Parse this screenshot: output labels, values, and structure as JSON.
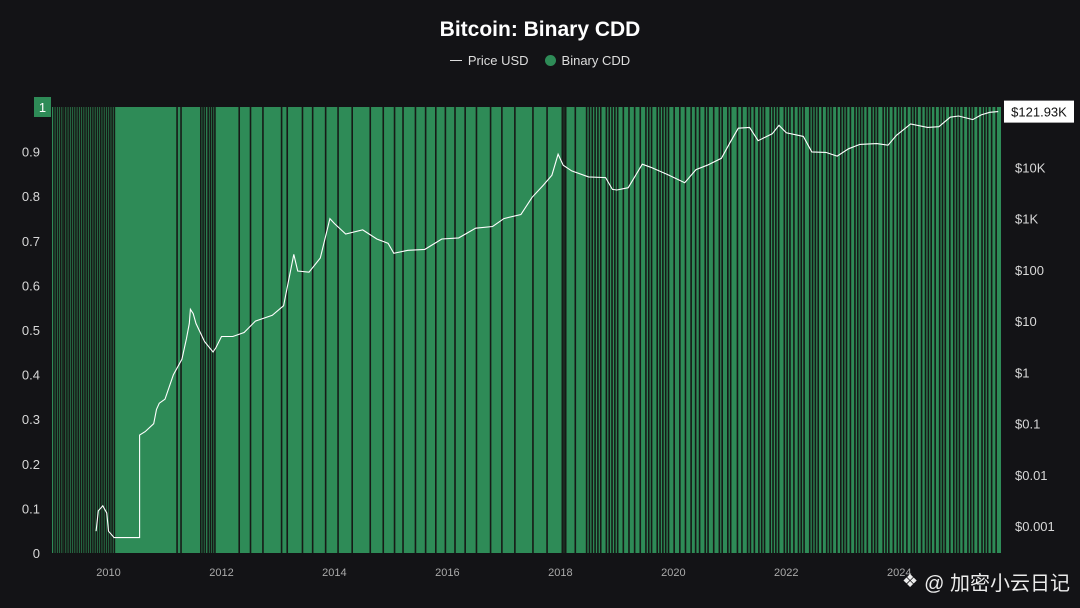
{
  "chart_data": {
    "type": "area",
    "title": "Bitcoin: Binary CDD",
    "legend_placement": "top-center",
    "grid": false,
    "colors": {
      "background": "#131316",
      "binary_cdd": "#2e8b57",
      "price": "#ffffff",
      "gap": "#161a17"
    },
    "left_axis": {
      "ylim": [
        0,
        1
      ],
      "ticks": [
        "0",
        "0.1",
        "0.2",
        "0.3",
        "0.4",
        "0.5",
        "0.6",
        "0.7",
        "0.8",
        "0.9",
        "1"
      ],
      "highlight_label": "1"
    },
    "right_axis": {
      "scale": "log",
      "ticks": [
        "$0.001",
        "$0.01",
        "$0.1",
        "$1",
        "$10",
        "$100",
        "$1K",
        "$10K"
      ],
      "ylim_usd": [
        0.0003,
        150000
      ],
      "last_value_label": "$121.93K"
    },
    "x_axis": {
      "ticks": [
        "2010",
        "2012",
        "2014",
        "2016",
        "2018",
        "2020",
        "2022",
        "2024"
      ],
      "xlim": [
        2009.0,
        2025.8
      ]
    },
    "series": [
      {
        "name": "Price USD",
        "values": [
          [
            2009.78,
            0.0008
          ],
          [
            2009.82,
            0.002
          ],
          [
            2009.9,
            0.0025
          ],
          [
            2009.97,
            0.0018
          ],
          [
            2010.0,
            0.0008
          ],
          [
            2010.1,
            0.0006
          ],
          [
            2010.55,
            0.0006
          ],
          [
            2010.55,
            0.06
          ],
          [
            2010.65,
            0.07
          ],
          [
            2010.8,
            0.1
          ],
          [
            2010.85,
            0.19
          ],
          [
            2010.9,
            0.25
          ],
          [
            2011.0,
            0.3
          ],
          [
            2011.15,
            0.9
          ],
          [
            2011.3,
            1.8
          ],
          [
            2011.38,
            4.5
          ],
          [
            2011.43,
            9
          ],
          [
            2011.45,
            17
          ],
          [
            2011.5,
            14
          ],
          [
            2011.55,
            9
          ],
          [
            2011.7,
            4
          ],
          [
            2011.85,
            2.5
          ],
          [
            2011.9,
            3
          ],
          [
            2012.0,
            5
          ],
          [
            2012.2,
            5
          ],
          [
            2012.4,
            6
          ],
          [
            2012.6,
            10
          ],
          [
            2012.9,
            13
          ],
          [
            2013.1,
            20
          ],
          [
            2013.28,
            200
          ],
          [
            2013.35,
            95
          ],
          [
            2013.55,
            90
          ],
          [
            2013.75,
            170
          ],
          [
            2013.92,
            1000
          ],
          [
            2014.0,
            800
          ],
          [
            2014.2,
            500
          ],
          [
            2014.5,
            600
          ],
          [
            2014.75,
            400
          ],
          [
            2014.95,
            330
          ],
          [
            2015.05,
            210
          ],
          [
            2015.3,
            240
          ],
          [
            2015.6,
            250
          ],
          [
            2015.9,
            400
          ],
          [
            2016.2,
            420
          ],
          [
            2016.5,
            650
          ],
          [
            2016.8,
            700
          ],
          [
            2017.0,
            1000
          ],
          [
            2017.3,
            1200
          ],
          [
            2017.5,
            2600
          ],
          [
            2017.7,
            4500
          ],
          [
            2017.85,
            7000
          ],
          [
            2017.96,
            18000
          ],
          [
            2018.05,
            11000
          ],
          [
            2018.2,
            8500
          ],
          [
            2018.5,
            6500
          ],
          [
            2018.8,
            6300
          ],
          [
            2018.92,
            3700
          ],
          [
            2019.0,
            3600
          ],
          [
            2019.2,
            4000
          ],
          [
            2019.45,
            11500
          ],
          [
            2019.6,
            10000
          ],
          [
            2019.9,
            7200
          ],
          [
            2020.2,
            5000
          ],
          [
            2020.4,
            9000
          ],
          [
            2020.6,
            11000
          ],
          [
            2020.85,
            15000
          ],
          [
            2021.0,
            30000
          ],
          [
            2021.15,
            58000
          ],
          [
            2021.35,
            60000
          ],
          [
            2021.5,
            33000
          ],
          [
            2021.75,
            45000
          ],
          [
            2021.87,
            66000
          ],
          [
            2022.0,
            47000
          ],
          [
            2022.3,
            40000
          ],
          [
            2022.45,
            20000
          ],
          [
            2022.7,
            19500
          ],
          [
            2022.9,
            16500
          ],
          [
            2023.1,
            23000
          ],
          [
            2023.3,
            28000
          ],
          [
            2023.6,
            29000
          ],
          [
            2023.8,
            27000
          ],
          [
            2023.95,
            42000
          ],
          [
            2024.2,
            70000
          ],
          [
            2024.5,
            60000
          ],
          [
            2024.7,
            62000
          ],
          [
            2024.9,
            95000
          ],
          [
            2025.05,
            100000
          ],
          [
            2025.3,
            85000
          ],
          [
            2025.45,
            105000
          ],
          [
            2025.6,
            118000
          ],
          [
            2025.75,
            121930
          ]
        ]
      },
      {
        "name": "Binary CDD",
        "value_when_on": 1,
        "gaps_year": [
          2009.02,
          2009.06,
          2009.1,
          2009.14,
          2009.18,
          2009.21,
          2009.25,
          2009.29,
          2009.33,
          2009.37,
          2009.41,
          2009.45,
          2009.49,
          2009.53,
          2009.57,
          2009.61,
          2009.65,
          2009.69,
          2009.73,
          2009.77,
          2009.81,
          2009.85,
          2009.89,
          2009.93,
          2009.97,
          2010.01,
          2010.05,
          2010.09,
          2011.2,
          2011.27,
          2011.62,
          2011.66,
          2011.7,
          2011.75,
          2011.79,
          2011.83,
          2011.87,
          2012.3,
          2012.5,
          2012.72,
          2013.05,
          2013.15,
          2013.42,
          2013.6,
          2013.83,
          2014.05,
          2014.3,
          2014.62,
          2014.85,
          2015.05,
          2015.2,
          2015.42,
          2015.6,
          2015.78,
          2015.95,
          2016.12,
          2016.3,
          2016.5,
          2016.75,
          2016.95,
          2017.18,
          2017.5,
          2017.75,
          2018.02,
          2018.05,
          2018.08,
          2018.25,
          2018.45,
          2018.5,
          2018.55,
          2018.6,
          2018.65,
          2018.7,
          2018.8,
          2018.85,
          2018.9,
          2018.95,
          2019.0,
          2019.1,
          2019.2,
          2019.3,
          2019.4,
          2019.5,
          2019.55,
          2019.6,
          2019.7,
          2019.75,
          2019.8,
          2019.85,
          2019.9,
          2020.0,
          2020.1,
          2020.2,
          2020.3,
          2020.38,
          2020.45,
          2020.55,
          2020.6,
          2020.7,
          2020.8,
          2020.85,
          2020.95,
          2021.0,
          2021.12,
          2021.2,
          2021.3,
          2021.35,
          2021.42,
          2021.5,
          2021.55,
          2021.6,
          2021.7,
          2021.75,
          2021.8,
          2021.85,
          2021.95,
          2022.0,
          2022.05,
          2022.12,
          2022.2,
          2022.25,
          2022.3,
          2022.4,
          2022.45,
          2022.5,
          2022.55,
          2022.62,
          2022.7,
          2022.75,
          2022.8,
          2022.88,
          2022.95,
          2023.0,
          2023.05,
          2023.12,
          2023.2,
          2023.25,
          2023.3,
          2023.35,
          2023.42,
          2023.5,
          2023.55,
          2023.6,
          2023.7,
          2023.75,
          2023.8,
          2023.88,
          2023.95,
          2024.0,
          2024.05,
          2024.12,
          2024.2,
          2024.25,
          2024.3,
          2024.38,
          2024.45,
          2024.5,
          2024.55,
          2024.62,
          2024.7,
          2024.75,
          2024.8,
          2024.88,
          2024.95,
          2025.0,
          2025.05,
          2025.12,
          2025.2,
          2025.25,
          2025.3,
          2025.38,
          2025.45,
          2025.5,
          2025.55,
          2025.62,
          2025.7
        ]
      }
    ]
  },
  "watermark": {
    "icon": "binance-diamond-icon",
    "text": "@ 加密小云日记"
  }
}
